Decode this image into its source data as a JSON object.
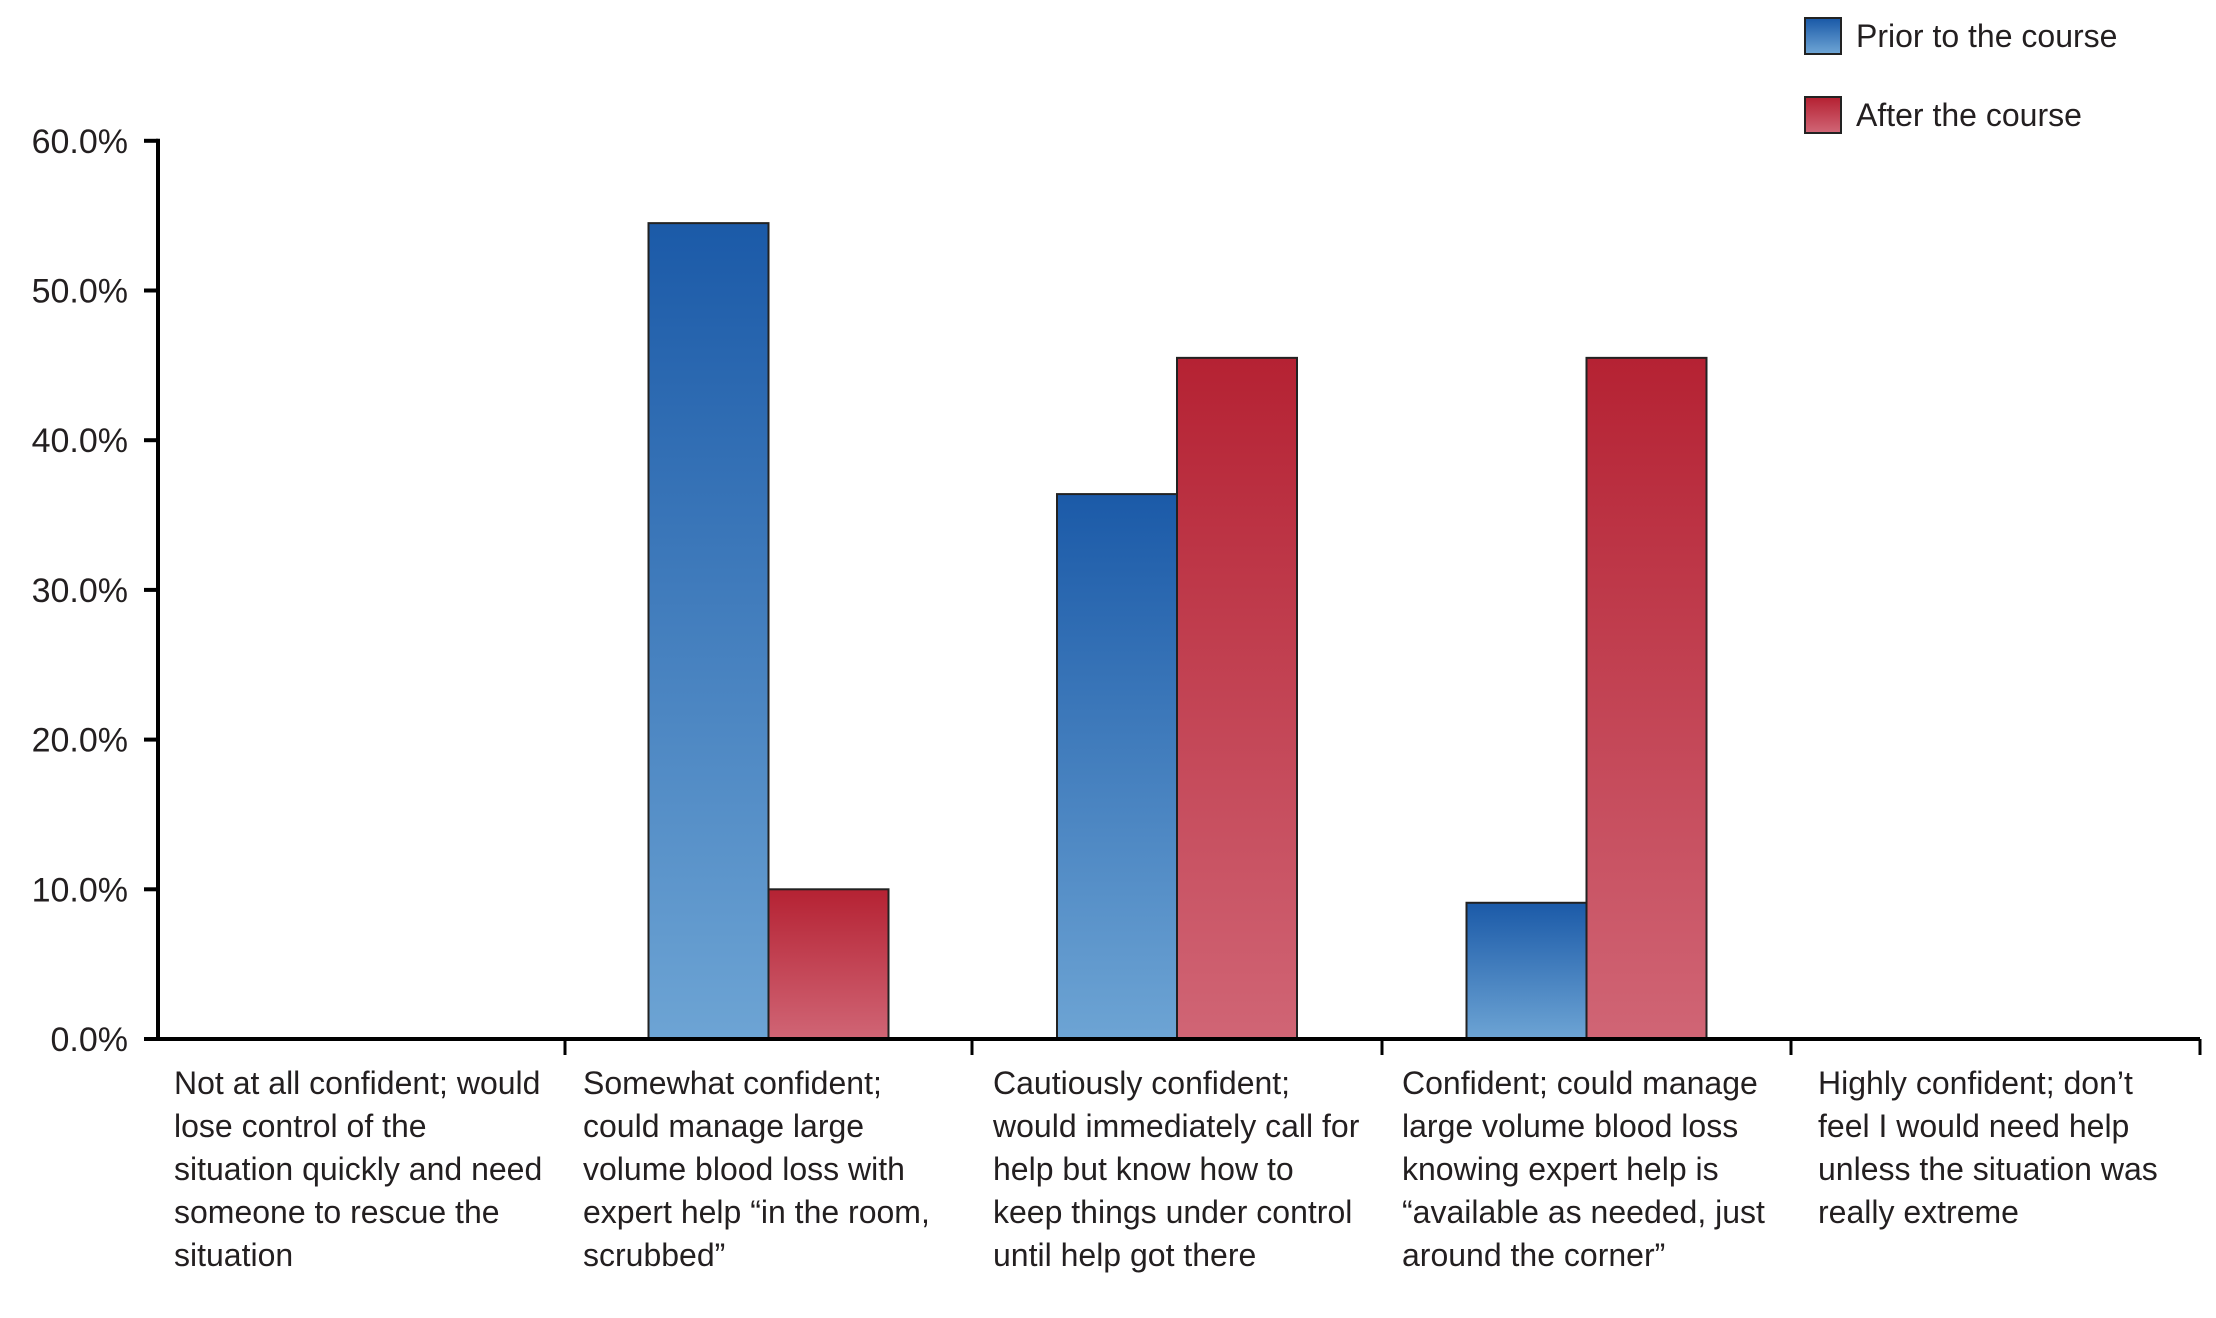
{
  "chart_data": {
    "type": "bar",
    "categories": [
      "Not at all confident; would lose control of the situation quickly and need someone to rescue the situation",
      "Somewhat confident; could manage large volume blood loss with expert help “in the room, scrubbed”",
      "Cautiously confident; would immediately call for help but know how to keep things under control until help got there",
      "Confident; could manage large volume blood loss knowing expert help is “available as needed, just around the corner”",
      "Highly confident; don’t feel I would need help unless the situation was really extreme"
    ],
    "series": [
      {
        "name": "Prior to the course",
        "color": "#1b5aa8",
        "values": [
          0,
          54.5,
          36.4,
          9.1,
          0
        ]
      },
      {
        "name": "After the course",
        "color": "#b52233",
        "values": [
          0,
          10.0,
          45.5,
          45.5,
          0
        ]
      }
    ],
    "y_ticks": [
      "0.0%",
      "10.0%",
      "20.0%",
      "30.0%",
      "40.0%",
      "50.0%",
      "60.0%"
    ],
    "ylim": [
      0,
      60
    ],
    "legend_position": "top-right",
    "grid": false
  }
}
